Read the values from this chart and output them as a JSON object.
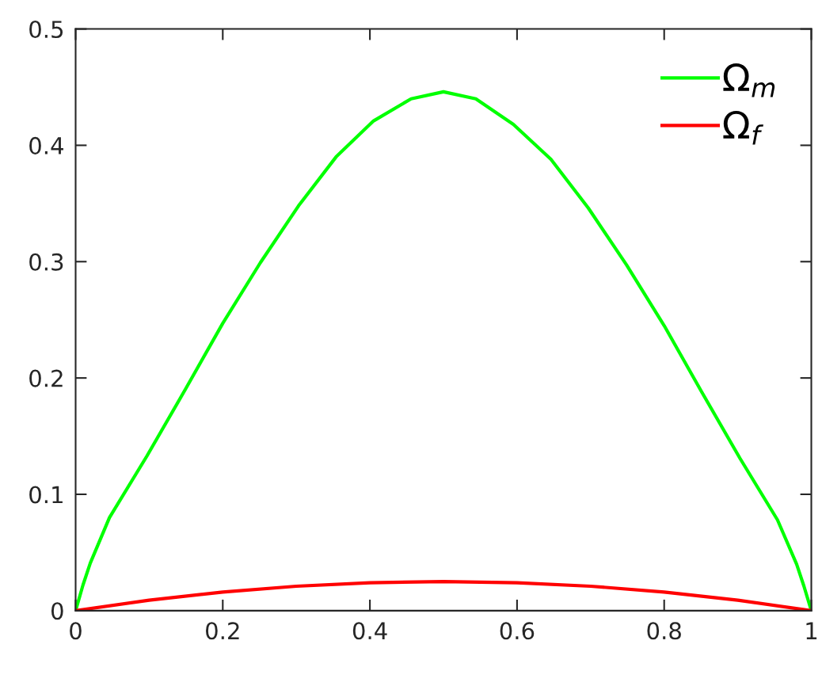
{
  "chart_data": {
    "type": "line",
    "xlim": [
      0,
      1
    ],
    "ylim": [
      0,
      0.5
    ],
    "xticks": [
      0,
      0.2,
      0.4,
      0.6,
      0.8,
      1
    ],
    "yticks": [
      0,
      0.1,
      0.2,
      0.3,
      0.4,
      0.5
    ],
    "grid": false,
    "legend": "top right",
    "marker": "none",
    "line_style": "solid",
    "series": [
      {
        "name": "Ω$_{m}$",
        "color": "#00ff00",
        "x": [
          0,
          0.01,
          0.02,
          0.046,
          0.097,
          0.149,
          0.2,
          0.251,
          0.303,
          0.354,
          0.405,
          0.456,
          0.5,
          0.544,
          0.595,
          0.646,
          0.697,
          0.749,
          0.8,
          0.851,
          0.903,
          0.954,
          0.98,
          0.99,
          1
        ],
        "values": [
          0,
          0.022,
          0.041,
          0.08,
          0.133,
          0.19,
          0.247,
          0.299,
          0.348,
          0.39,
          0.421,
          0.44,
          0.446,
          0.44,
          0.418,
          0.388,
          0.346,
          0.297,
          0.245,
          0.188,
          0.131,
          0.078,
          0.04,
          0.021,
          0
        ]
      },
      {
        "name": "Ω$_{f}$",
        "color": "#ff0000",
        "x": [
          0,
          0.1,
          0.2,
          0.3,
          0.4,
          0.5,
          0.6,
          0.7,
          0.8,
          0.9,
          1
        ],
        "values": [
          0,
          0.009,
          0.016,
          0.021,
          0.024,
          0.025,
          0.024,
          0.021,
          0.016,
          0.009,
          0
        ]
      }
    ]
  }
}
